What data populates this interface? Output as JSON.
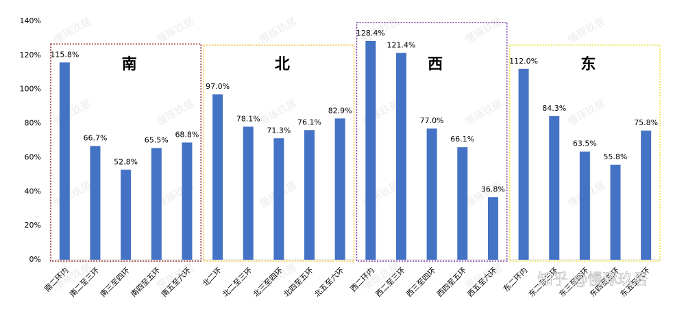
{
  "chart_data": {
    "type": "bar",
    "categories": [
      "南二环内",
      "南二至三环",
      "南三至四环",
      "南四至五环",
      "南五至六环",
      "北二环",
      "北二至三环",
      "北三至四环",
      "北四至五环",
      "北五至六环",
      "西二环内",
      "西二至三环",
      "西三至四环",
      "西四至五环",
      "西五至六环",
      "东二环内",
      "东二至三环",
      "东三至四环",
      "东四至五环",
      "东五至六环"
    ],
    "values": [
      115.8,
      66.7,
      52.8,
      65.5,
      68.8,
      97.0,
      78.1,
      71.3,
      76.1,
      82.9,
      128.4,
      121.4,
      77.0,
      66.1,
      36.8,
      112.0,
      84.3,
      63.5,
      55.8,
      75.8
    ],
    "value_labels": [
      "115.8%",
      "66.7%",
      "52.8%",
      "65.5%",
      "68.8%",
      "97.0%",
      "78.1%",
      "71.3%",
      "76.1%",
      "82.9%",
      "128.4%",
      "121.4%",
      "77.0%",
      "66.1%",
      "36.8%",
      "112.0%",
      "84.3%",
      "63.5%",
      "55.8%",
      "75.8%"
    ],
    "color": "#4472c4",
    "ylim": [
      0,
      140
    ],
    "yticks": [
      {
        "value": 0,
        "label": "0%"
      },
      {
        "value": 20,
        "label": "20%"
      },
      {
        "value": 40,
        "label": "40%"
      },
      {
        "value": 60,
        "label": "60%"
      },
      {
        "value": 80,
        "label": "80%"
      },
      {
        "value": 100,
        "label": "100%"
      },
      {
        "value": 120,
        "label": "120%"
      },
      {
        "value": 140,
        "label": "140%"
      }
    ],
    "groups": [
      {
        "name": "南",
        "color": "#8b1a1a"
      },
      {
        "name": "北",
        "color": "#f0c030"
      },
      {
        "name": "西",
        "color": "#7030a0"
      },
      {
        "name": "东",
        "color": "#e6e030"
      }
    ],
    "watermark": "知乎 @慢琢玖居",
    "background_watermark": "慢琢玖居"
  }
}
